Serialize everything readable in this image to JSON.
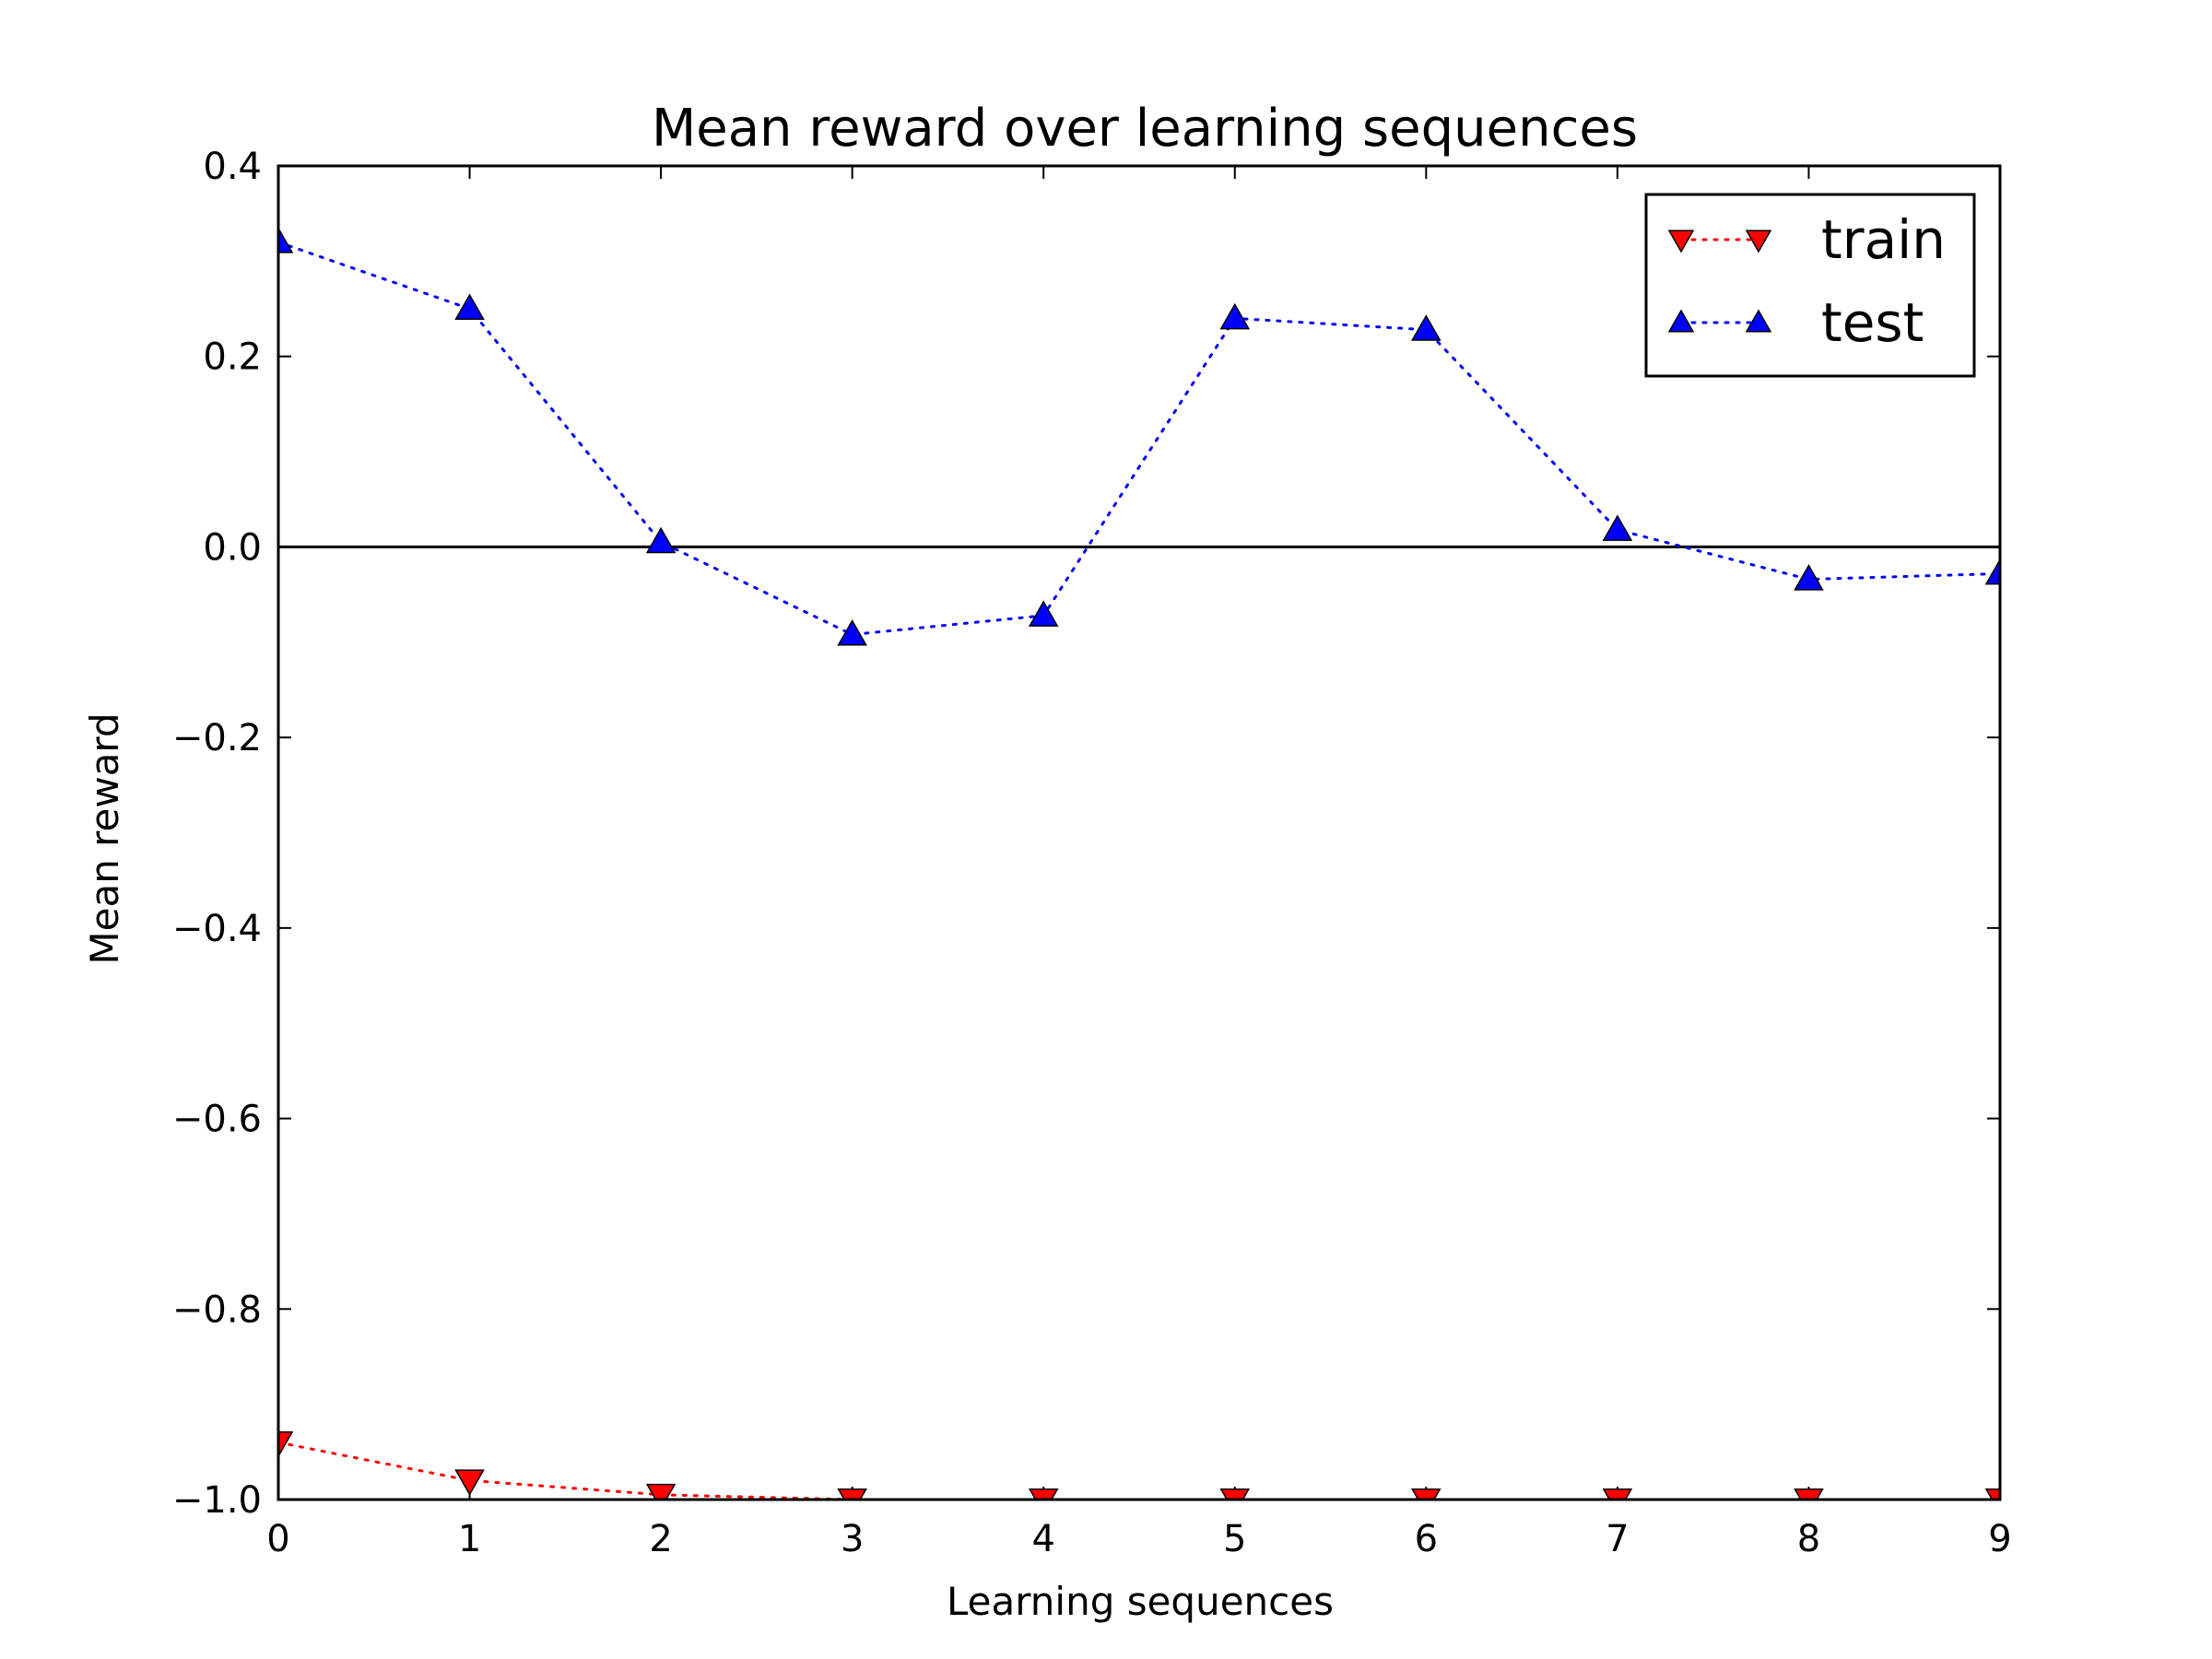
{
  "chart_data": {
    "type": "line",
    "title": "Mean reward over learning sequences",
    "xlabel": "Learning sequences",
    "ylabel": "Mean reward",
    "x": [
      0,
      1,
      2,
      3,
      4,
      5,
      6,
      7,
      8,
      9
    ],
    "xlim": [
      0,
      9
    ],
    "ylim": [
      -1.0,
      0.4
    ],
    "xticks": [
      "0",
      "1",
      "2",
      "3",
      "4",
      "5",
      "6",
      "7",
      "8",
      "9"
    ],
    "yticks": [
      {
        "value": 0.4,
        "label": "0.4"
      },
      {
        "value": 0.2,
        "label": "0.2"
      },
      {
        "value": 0.0,
        "label": "0.0"
      },
      {
        "value": -0.2,
        "label": "−0.2"
      },
      {
        "value": -0.4,
        "label": "−0.4"
      },
      {
        "value": -0.6,
        "label": "−0.6"
      },
      {
        "value": -0.8,
        "label": "−0.8"
      },
      {
        "value": -1.0,
        "label": "−1.0"
      }
    ],
    "reference_line": {
      "y": 0.0,
      "color": "#000000"
    },
    "grid": false,
    "legend_position": "top-right",
    "series": [
      {
        "name": "train",
        "color": "#ff0000",
        "marker": "triangle-down",
        "line_style": "dotted",
        "values": [
          -0.94,
          -0.98,
          -0.995,
          -1.0,
          -1.0,
          -1.0,
          -1.0,
          -1.0,
          -1.0,
          -1.0
        ]
      },
      {
        "name": "test",
        "color": "#0000ff",
        "marker": "triangle-up",
        "line_style": "dotted",
        "values": [
          0.32,
          0.25,
          0.005,
          -0.092,
          -0.072,
          0.24,
          0.228,
          0.018,
          -0.034,
          -0.028
        ]
      }
    ]
  }
}
